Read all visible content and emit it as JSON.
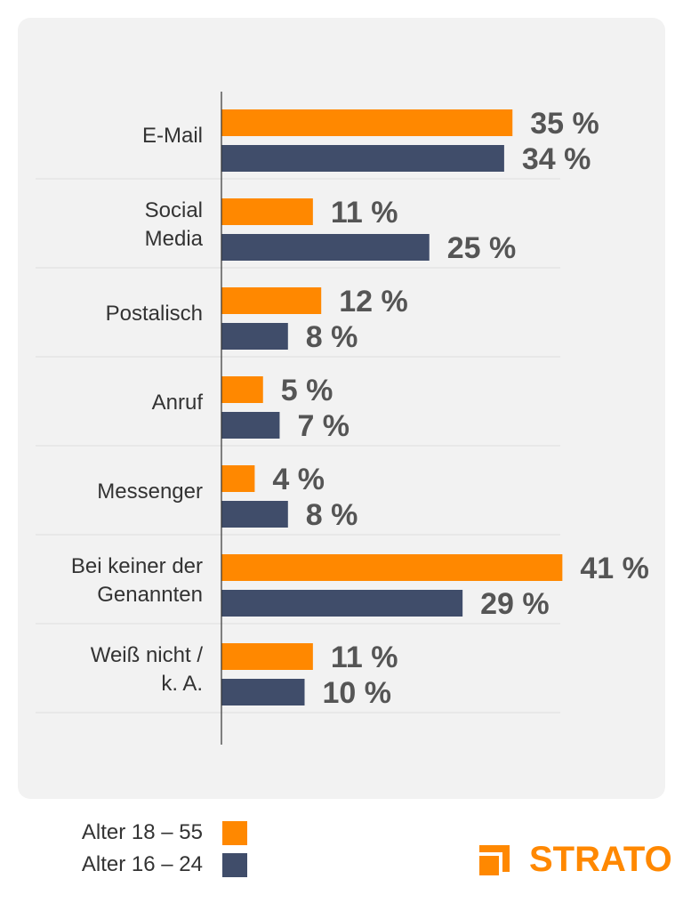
{
  "chart_data": {
    "type": "bar",
    "orientation": "horizontal",
    "categories": [
      [
        "E-Mail"
      ],
      [
        "Social",
        "Media"
      ],
      [
        "Postalisch"
      ],
      [
        "Anruf"
      ],
      [
        "Messenger"
      ],
      [
        "Bei keiner der",
        "Genannten"
      ],
      [
        "Weiß nicht /",
        "k. A."
      ]
    ],
    "series": [
      {
        "name": "Alter 18 – 55",
        "color": "#ff8800",
        "values": [
          35,
          11,
          12,
          5,
          4,
          41,
          11
        ]
      },
      {
        "name": "Alter 16 – 24",
        "color": "#404d6a",
        "values": [
          34,
          25,
          8,
          7,
          8,
          29,
          10
        ]
      }
    ],
    "value_suffix": " %",
    "xlim": [
      0,
      45
    ],
    "grid": false,
    "legend_position": "bottom-left"
  },
  "legend": {
    "items": [
      {
        "label": "Alter 18 – 55",
        "color": "#ff8800"
      },
      {
        "label": "Alter 16 – 24",
        "color": "#404d6a"
      }
    ]
  },
  "brand": {
    "name": "STRATO",
    "color": "#ff8800",
    "icon": "strato-logo-icon"
  }
}
